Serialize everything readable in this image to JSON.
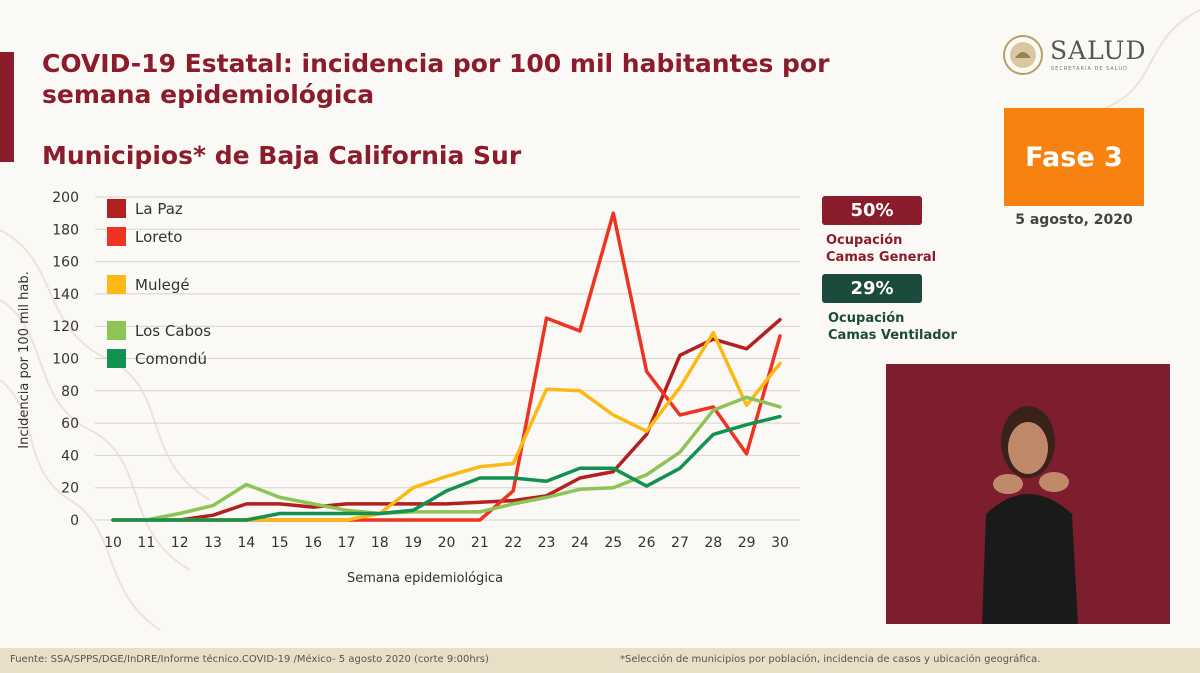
{
  "header": {
    "title": "COVID-19 Estatal: incidencia por 100 mil habitantes por semana epidemiológica",
    "subtitle": "Municipios* de Baja California Sur"
  },
  "logo": {
    "word": "SALUD",
    "sub": "SECRETARÍA DE SALUD"
  },
  "phase": {
    "label": "Fase 3",
    "date": "5 agosto, 2020"
  },
  "occupancy": {
    "general": {
      "value": "50%",
      "label_1": "Ocupación",
      "label_2": "Camas General"
    },
    "ventilator": {
      "value": "29%",
      "label_1": "Ocupación",
      "label_2": "Camas Ventilador"
    }
  },
  "footer": {
    "source": "Fuente: SSA/SPPS/DGE/InDRE/Informe técnico.COVID-19 /México- 5 agosto 2020 (corte 9:00hrs)",
    "note": "*Selección de municipios por población, incidencia de casos y ubicación geográfica."
  },
  "chart_data": {
    "type": "line",
    "xlabel": "Semana epidemiológica",
    "ylabel": "Incidencia por 100 mil hab.",
    "x": [
      10,
      11,
      12,
      13,
      14,
      15,
      16,
      17,
      18,
      19,
      20,
      21,
      22,
      23,
      24,
      25,
      26,
      27,
      28,
      29,
      30
    ],
    "ylim": [
      0,
      200
    ],
    "yticks": [
      0,
      20,
      40,
      60,
      80,
      100,
      120,
      140,
      160,
      180,
      200
    ],
    "grid": true,
    "legend_position": "top-left",
    "series": [
      {
        "name": "La Paz",
        "color": "#b22020",
        "values": [
          0,
          0,
          0,
          3,
          10,
          10,
          8,
          10,
          10,
          10,
          10,
          11,
          12,
          15,
          26,
          30,
          53,
          102,
          112,
          106,
          124
        ]
      },
      {
        "name": "Loreto",
        "color": "#ee3322",
        "values": [
          0,
          0,
          0,
          0,
          0,
          0,
          0,
          0,
          0,
          0,
          0,
          0,
          18,
          125,
          117,
          190,
          92,
          65,
          70,
          41,
          114
        ]
      },
      {
        "name": "Mulegé",
        "color": "#fcb814",
        "values": [
          0,
          0,
          0,
          0,
          0,
          0,
          0,
          0,
          4,
          20,
          27,
          33,
          35,
          81,
          80,
          65,
          55,
          82,
          116,
          71,
          97
        ]
      },
      {
        "name": "Los Cabos",
        "color": "#8dc455",
        "values": [
          0,
          0,
          4,
          9,
          22,
          14,
          10,
          6,
          4,
          5,
          5,
          5,
          10,
          14,
          19,
          20,
          28,
          42,
          68,
          76,
          70
        ]
      },
      {
        "name": "Comondú",
        "color": "#129151",
        "values": [
          0,
          0,
          0,
          0,
          0,
          4,
          4,
          4,
          4,
          6,
          18,
          26,
          26,
          24,
          32,
          32,
          21,
          32,
          53,
          59,
          64
        ]
      }
    ]
  }
}
